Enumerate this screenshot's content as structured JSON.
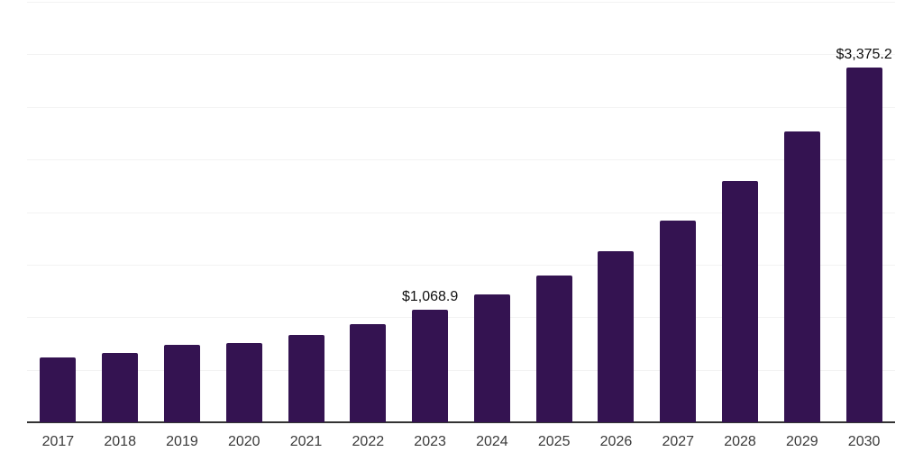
{
  "chart_data": {
    "type": "bar",
    "categories": [
      "2017",
      "2018",
      "2019",
      "2020",
      "2021",
      "2022",
      "2023",
      "2024",
      "2025",
      "2026",
      "2027",
      "2028",
      "2029",
      "2030"
    ],
    "values": [
      620,
      663,
      737,
      755,
      834,
      934,
      1068.9,
      1214,
      1400,
      1625,
      1921,
      2293,
      2771,
      3375.2
    ],
    "annotations": [
      {
        "category": "2023",
        "text": "$1,068.9"
      },
      {
        "category": "2030",
        "text": "$3,375.2"
      }
    ],
    "title": "",
    "xlabel": "",
    "ylabel": "",
    "ylim": [
      0,
      4000
    ],
    "grid_step": 500,
    "grid": true,
    "legend": false,
    "x_axis_line": true,
    "colors": {
      "bar": "#341351",
      "gridline": "#f3f3f3",
      "axis": "#333333",
      "tick_label": "#3a3a3a",
      "data_label": "#0f0f0f",
      "background": "#ffffff"
    }
  }
}
